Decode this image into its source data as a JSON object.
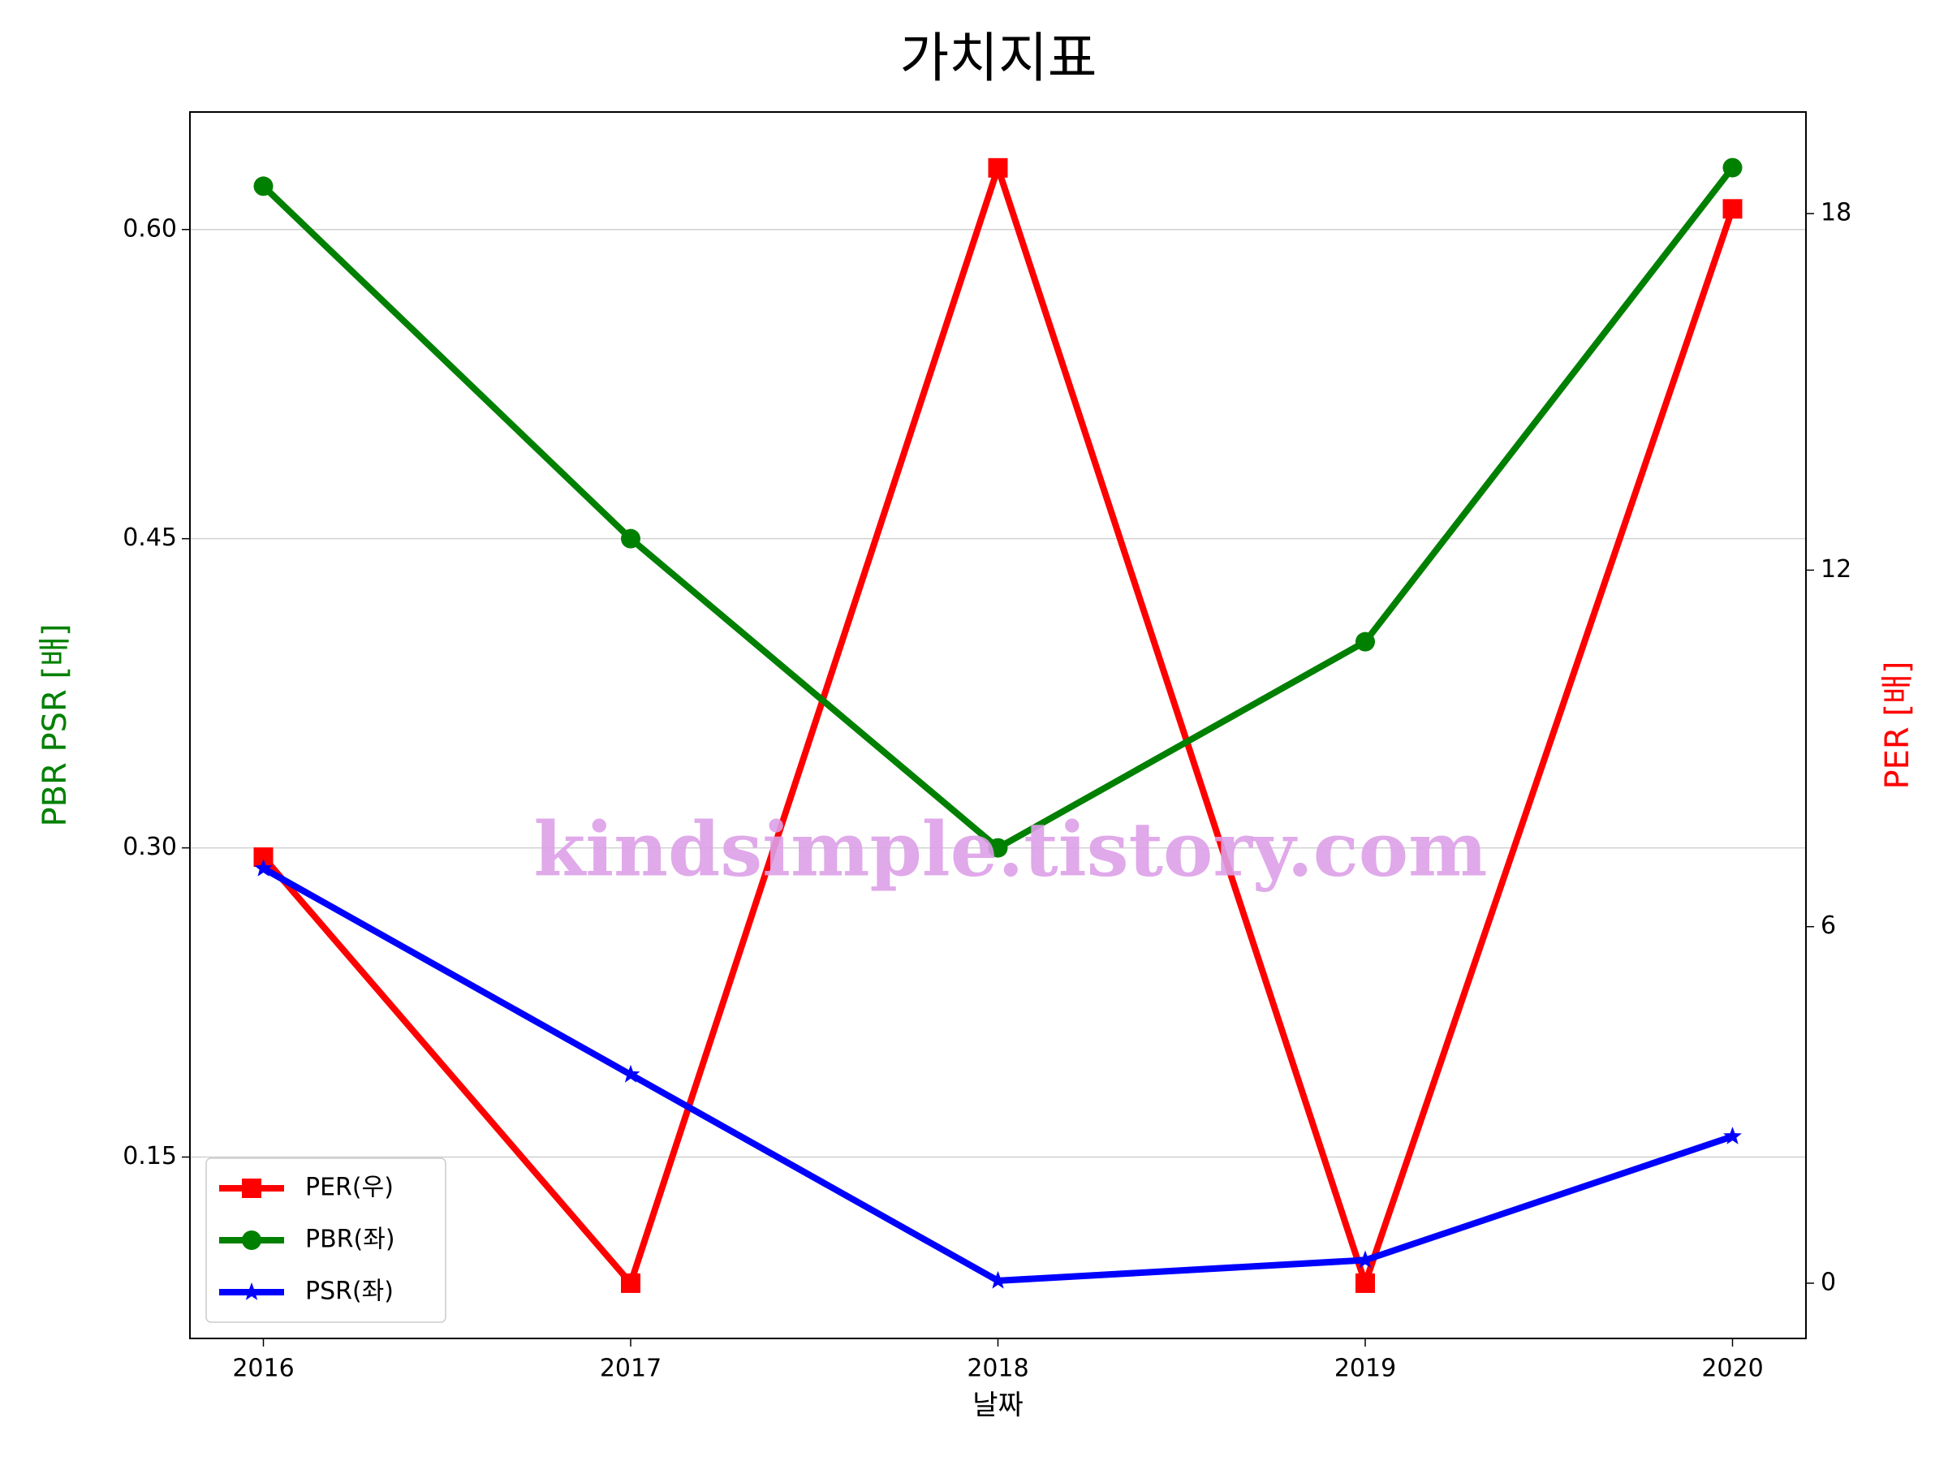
{
  "chart_data": {
    "type": "line",
    "title": "가치지표",
    "x_label": "날짜",
    "y_label": "PBR PSR [배]",
    "y_label_color": "#008000",
    "y2_label": "PER [배]",
    "y2_label_color": "#ff0000",
    "watermark": "kindsimple.tistory.com",
    "x": [
      2016,
      2017,
      2018,
      2019,
      2020
    ],
    "xlim": [
      2015.8,
      2020.2
    ],
    "xticks": [
      2016,
      2017,
      2018,
      2019,
      2020
    ],
    "ylim": [
      0.062,
      0.657
    ],
    "yticks": [
      {
        "value": 0.15,
        "label": "0.15"
      },
      {
        "value": 0.3,
        "label": "0.30"
      },
      {
        "value": 0.45,
        "label": "0.45"
      },
      {
        "value": 0.6,
        "label": "0.60"
      }
    ],
    "y2lim": [
      -0.93,
      19.71
    ],
    "y2ticks": [
      0,
      6,
      12,
      18
    ],
    "grid": true,
    "legend": "lower left",
    "series": [
      {
        "name": "PER(우)",
        "color": "#ff0000",
        "axis": "y2",
        "marker": "square",
        "values": [
          7.17,
          0,
          18.77,
          0,
          18.08
        ]
      },
      {
        "name": "PBR(좌)",
        "color": "#008000",
        "marker": "circle",
        "values": [
          0.621,
          0.45,
          0.3,
          0.4,
          0.63
        ]
      },
      {
        "name": "PSR(좌)",
        "color": "#0000ff",
        "marker": "star",
        "values": [
          0.29,
          0.19,
          0.09,
          0.1,
          0.16
        ]
      }
    ]
  }
}
